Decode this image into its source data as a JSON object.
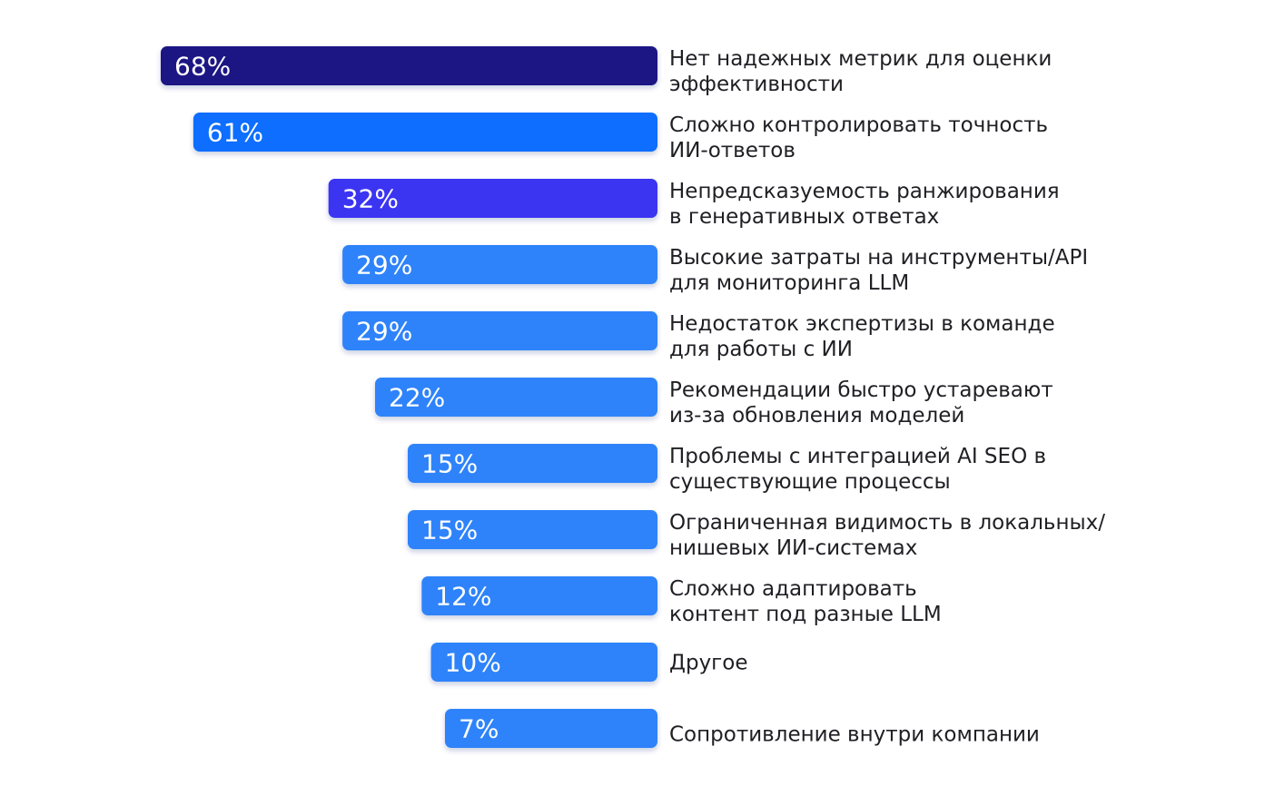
{
  "colors": {
    "dark_navy": "#1b1584",
    "bright_blue": "#0d6eff",
    "indigo": "#3a34f2",
    "blue": "#2d83fa",
    "text": "#1f1f24"
  },
  "chart_data": {
    "type": "bar",
    "orientation": "horizontal",
    "unit": "%",
    "xlim": [
      0,
      100
    ],
    "grid": false,
    "legend": "none",
    "categories": [
      [
        "Нет надежных метрик для оценки",
        "эффективности"
      ],
      [
        "Сложно контролировать точность",
        "ИИ-ответов"
      ],
      [
        "Непредсказуемость ранжирования",
        "в генеративных ответах"
      ],
      [
        "Высокие затраты на инструменты/API",
        "для мониторинга LLM"
      ],
      [
        "Недостаток экспертизы в команде",
        "для работы с ИИ"
      ],
      [
        "Рекомендации быстро устаревают",
        "из-за обновления моделей"
      ],
      [
        "Проблемы с интеграцией AI SEO в",
        "существующие процессы"
      ],
      [
        "Ограниченная видимость в локальных/",
        "нишевых ИИ-системах"
      ],
      [
        "Сложно адаптировать",
        "контент под разные LLM"
      ],
      [
        "Другое"
      ],
      [
        "Сопротивление внутри компании"
      ]
    ],
    "values": [
      68,
      61,
      32,
      29,
      29,
      22,
      15,
      15,
      12,
      10,
      7
    ],
    "value_labels": [
      "68%",
      "61%",
      "32%",
      "29%",
      "29%",
      "22%",
      "15%",
      "15%",
      "12%",
      "10%",
      "7%"
    ],
    "bar_colors": [
      "#1b1584",
      "#0d6eff",
      "#3a34f2",
      "#2d83fa",
      "#2d83fa",
      "#2d83fa",
      "#2d83fa",
      "#2d83fa",
      "#2d83fa",
      "#2d83fa",
      "#2d83fa"
    ]
  }
}
